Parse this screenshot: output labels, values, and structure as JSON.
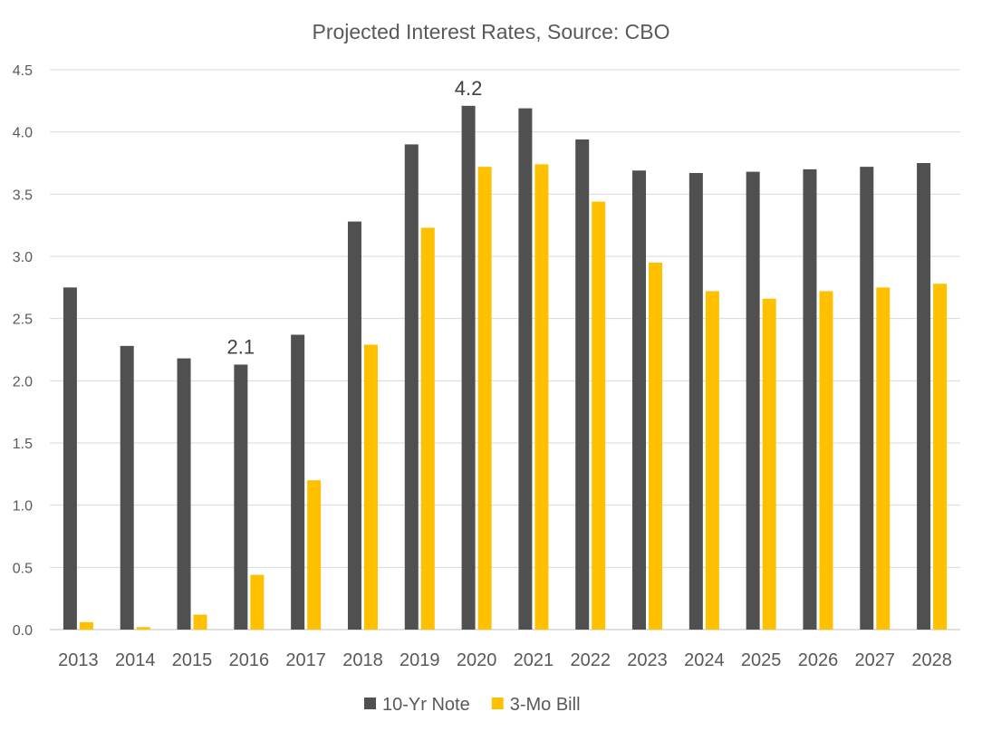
{
  "chart_data": {
    "type": "bar",
    "title": "Projected Interest Rates, Source: CBO",
    "xlabel": "",
    "ylabel": "",
    "ylim": [
      0,
      4.5
    ],
    "yticks": [
      "0.0",
      "0.5",
      "1.0",
      "1.5",
      "2.0",
      "2.5",
      "3.0",
      "3.5",
      "4.0",
      "4.5"
    ],
    "grid": true,
    "legend_position": "bottom",
    "categories": [
      "2013",
      "2014",
      "2015",
      "2016",
      "2017",
      "2018",
      "2019",
      "2020",
      "2021",
      "2022",
      "2023",
      "2024",
      "2025",
      "2026",
      "2027",
      "2028"
    ],
    "series": [
      {
        "name": "10-Yr Note",
        "color": "#505050",
        "values": [
          2.75,
          2.28,
          2.18,
          2.13,
          2.37,
          3.28,
          3.9,
          4.21,
          4.19,
          3.94,
          3.69,
          3.67,
          3.68,
          3.7,
          3.72,
          3.75
        ]
      },
      {
        "name": "3-Mo Bill",
        "color": "#FFC000",
        "values": [
          0.06,
          0.02,
          0.12,
          0.44,
          1.2,
          2.29,
          3.23,
          3.72,
          3.74,
          3.44,
          2.95,
          2.72,
          2.66,
          2.72,
          2.75,
          2.78
        ]
      }
    ],
    "annotations": [
      {
        "series": 0,
        "category": "2016",
        "text": "2.1"
      },
      {
        "series": 0,
        "category": "2020",
        "text": "4.2"
      }
    ]
  }
}
